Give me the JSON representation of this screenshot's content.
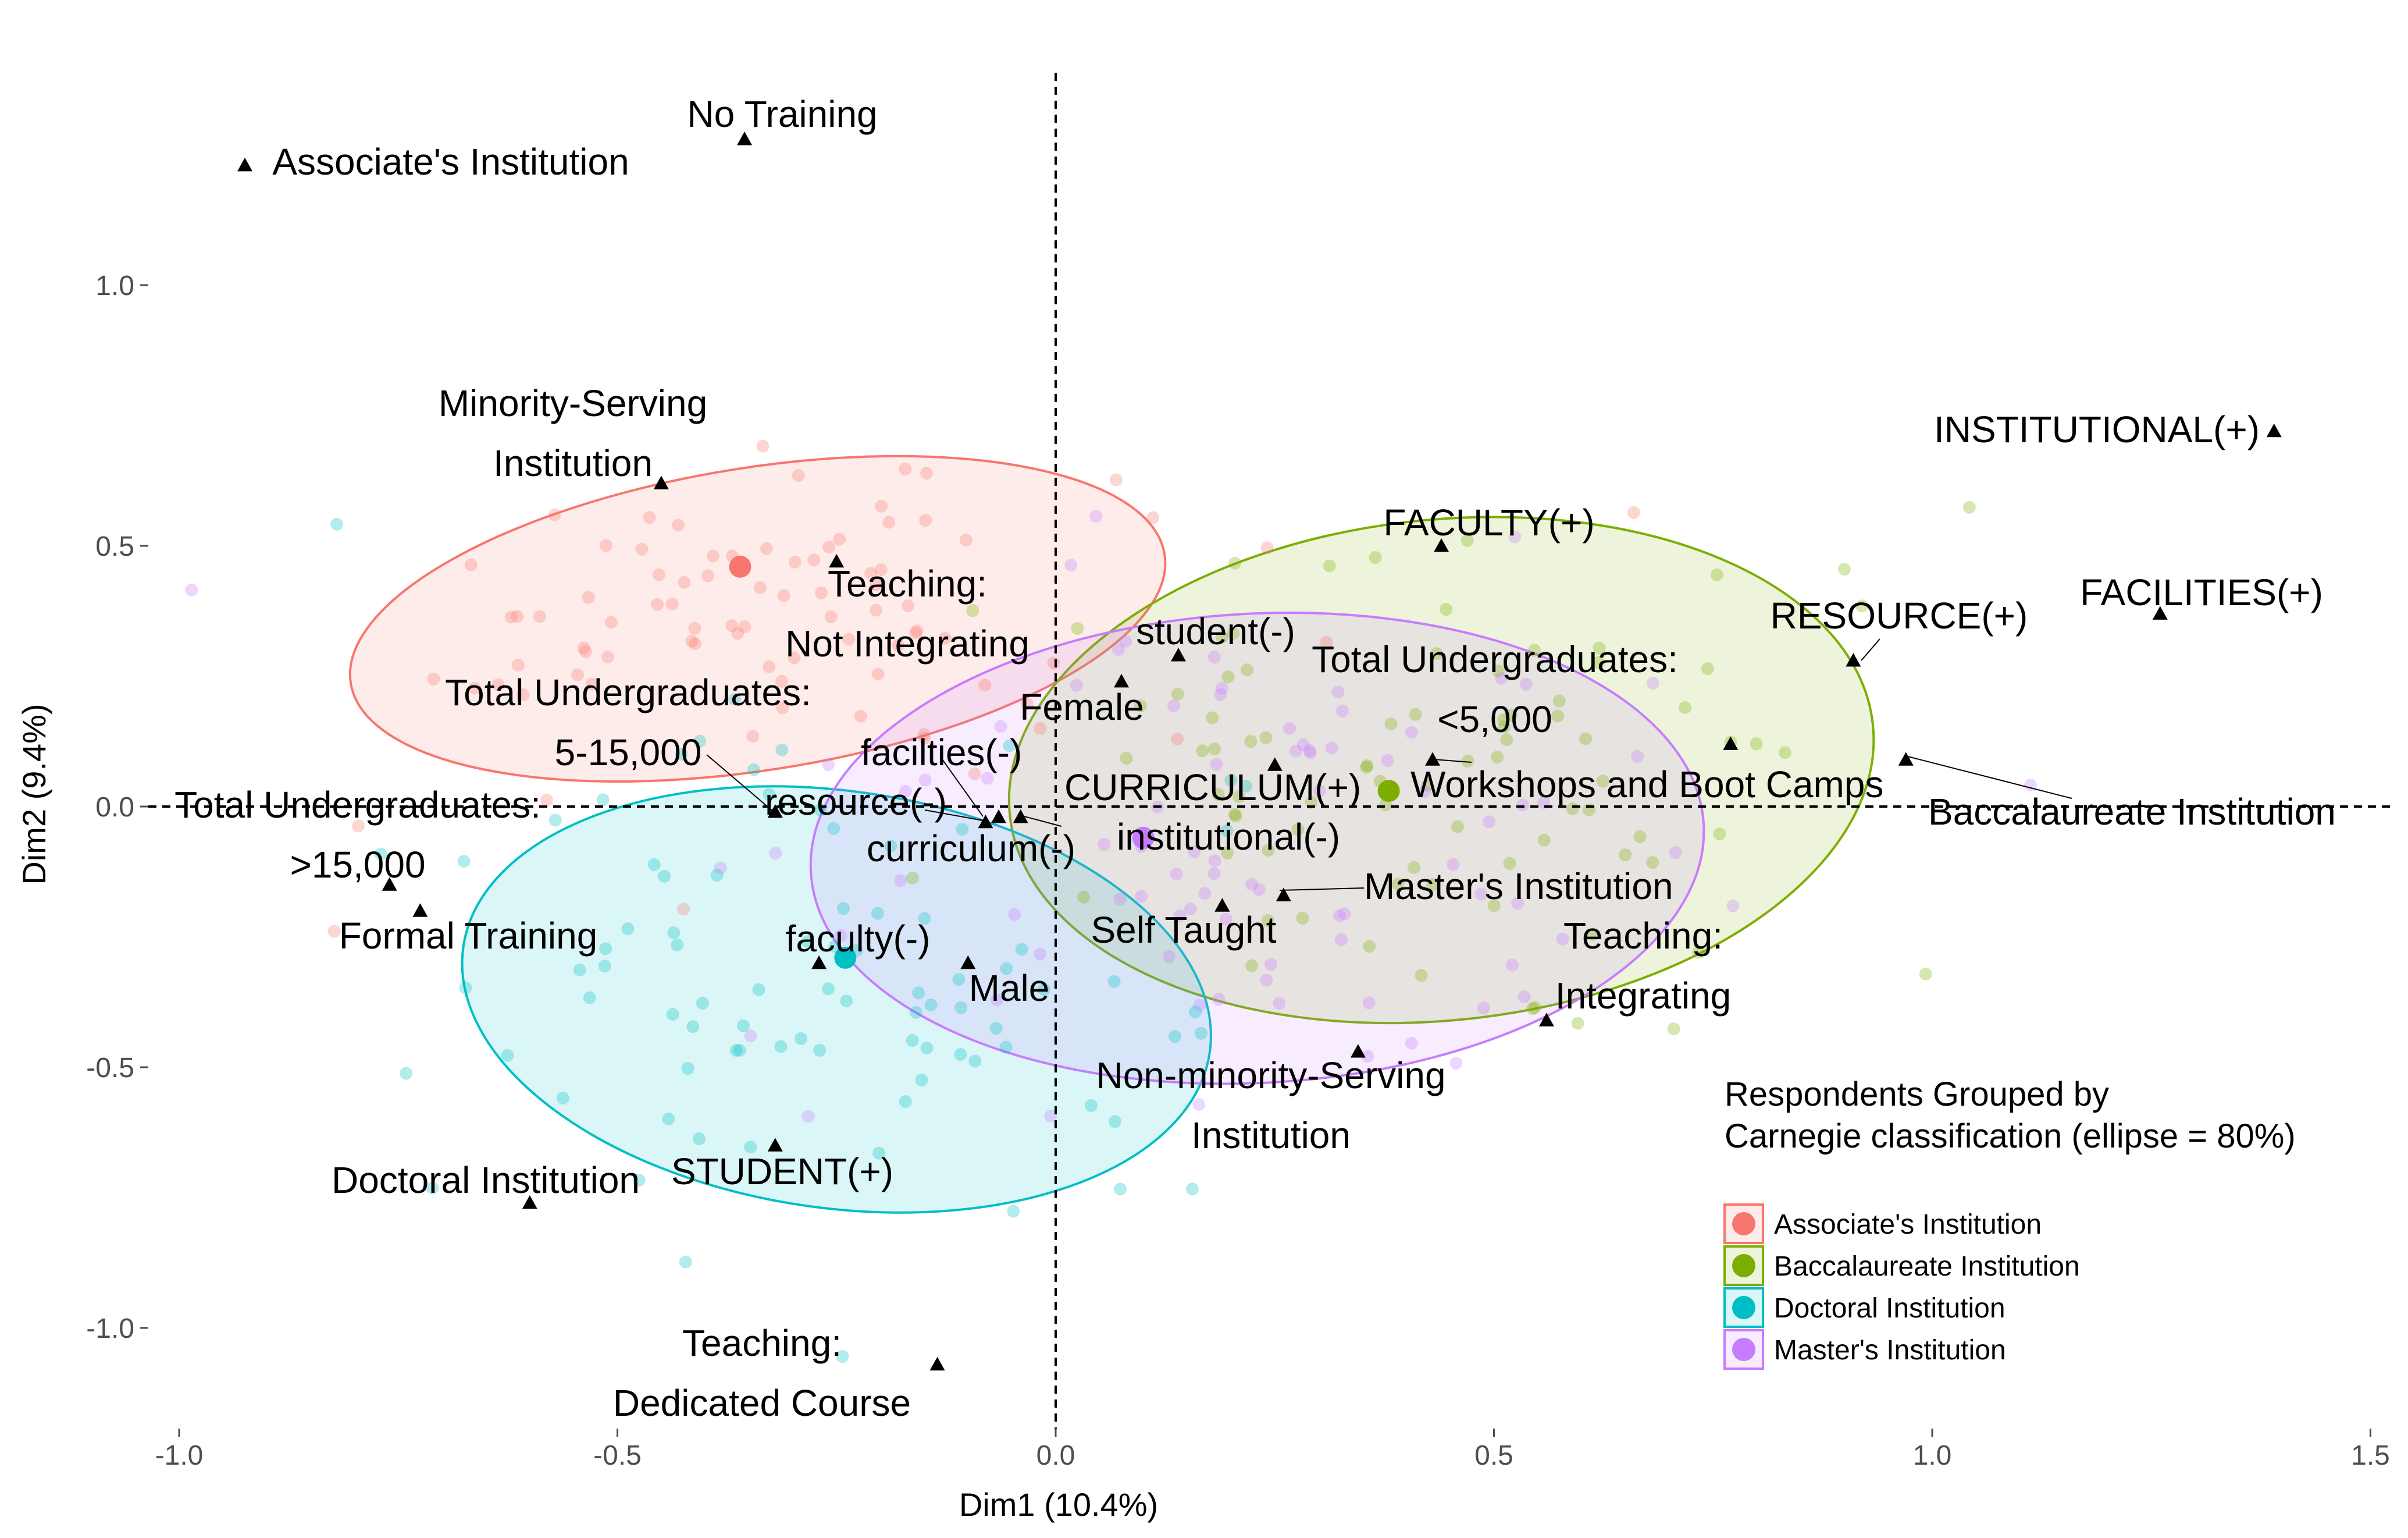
{
  "chart_data": {
    "type": "scatter",
    "title": "",
    "xlabel": "Dim1 (10.4%)",
    "ylabel": "Dim2 (9.4%)",
    "xlim": [
      -1.0,
      1.5
    ],
    "ylim": [
      -1.0,
      1.0
    ],
    "x_ticks": [
      "-1.0",
      "-0.5",
      "0.0",
      "0.5",
      "1.0",
      "1.5"
    ],
    "y_ticks": [
      "1.0",
      "0.5",
      "0.0",
      "-0.5",
      "-1.0"
    ],
    "grid": false,
    "reference_lines": {
      "x": 0,
      "y": 0
    },
    "legend": {
      "title_lines": [
        "Respondents Grouped by",
        "Carnegie classification (ellipse = 80%)"
      ],
      "position": "bottom-right"
    },
    "groups": [
      {
        "name": "Associate's Institution",
        "color": "#F8766D",
        "centroid": [
          -0.36,
          0.46
        ],
        "ellipse": {
          "cx": -0.34,
          "cy": 0.36,
          "rx": 0.47,
          "ry": 0.29,
          "angle": -9
        }
      },
      {
        "name": "Baccalaureate Institution",
        "color": "#7CAE00",
        "centroid": [
          0.38,
          0.03
        ],
        "ellipse": {
          "cx": 0.44,
          "cy": 0.07,
          "rx": 0.495,
          "ry": 0.48,
          "angle": -6
        }
      },
      {
        "name": "Doctoral Institution",
        "color": "#00BFC4",
        "centroid": [
          -0.24,
          -0.29
        ],
        "ellipse": {
          "cx": -0.25,
          "cy": -0.37,
          "rx": 0.43,
          "ry": 0.4,
          "angle": 8
        }
      },
      {
        "name": "Master's Institution",
        "color": "#C77CFF",
        "centroid": [
          0.1,
          -0.06
        ],
        "ellipse": {
          "cx": 0.23,
          "cy": -0.08,
          "rx": 0.51,
          "ry": 0.45,
          "angle": -3
        }
      }
    ],
    "variable_points": [
      {
        "label": "No Training",
        "x": -0.355,
        "y": 1.28
      },
      {
        "label": "Associate's Institution",
        "x": -0.925,
        "y": 1.23
      },
      {
        "label": "Minority-Serving\nInstitution",
        "x": -0.45,
        "y": 0.62
      },
      {
        "label": "Teaching:\nNot Integrating",
        "x": -0.25,
        "y": 0.47
      },
      {
        "label": "Total Undergraduates:\n5-15,000",
        "x": -0.32,
        "y": -0.01
      },
      {
        "label": "Total Undergraduates:\n>15,000",
        "x": -0.76,
        "y": -0.15
      },
      {
        "label": "Formal Training",
        "x": -0.725,
        "y": -0.2
      },
      {
        "label": "facilties(-)",
        "x": -0.065,
        "y": -0.02
      },
      {
        "label": "resource(-)",
        "x": -0.08,
        "y": -0.03
      },
      {
        "label": "curriculum(-)",
        "x": -0.04,
        "y": -0.02
      },
      {
        "label": "faculty(-)",
        "x": -0.27,
        "y": -0.3
      },
      {
        "label": "Male",
        "x": -0.1,
        "y": -0.3
      },
      {
        "label": "Female",
        "x": 0.075,
        "y": 0.24
      },
      {
        "label": "student(-)",
        "x": 0.14,
        "y": 0.29
      },
      {
        "label": "CURRICULUM(+)",
        "x": 0.25,
        "y": 0.08
      },
      {
        "label": "institutional(-)",
        "x": 0.19,
        "y": -0.19
      },
      {
        "label": "Self Taught",
        "x": 0.19,
        "y": -0.19
      },
      {
        "label": "Master's Institution",
        "x": 0.26,
        "y": -0.17
      },
      {
        "label": "FACULTY(+)",
        "x": 0.44,
        "y": 0.5
      },
      {
        "label": "Total Undergraduates:\n<5,000",
        "x": 0.43,
        "y": 0.09
      },
      {
        "label": "Workshops and Boot Camps",
        "x": 0.77,
        "y": 0.12
      },
      {
        "label": "RESOURCE(+)",
        "x": 0.91,
        "y": 0.28
      },
      {
        "label": "FACILITIES(+)",
        "x": 1.26,
        "y": 0.37
      },
      {
        "label": "INSTITUTIONAL(+)",
        "x": 1.39,
        "y": 0.72
      },
      {
        "label": "Baccalaureate Institution",
        "x": 0.97,
        "y": 0.09
      },
      {
        "label": "Teaching:\nIntegrating",
        "x": 0.56,
        "y": -0.41
      },
      {
        "label": "Non-minority-Serving\nInstitution",
        "x": 0.345,
        "y": -0.47
      },
      {
        "label": "STUDENT(+)",
        "x": -0.32,
        "y": -0.65
      },
      {
        "label": "Doctoral Institution",
        "x": -0.6,
        "y": -0.76
      },
      {
        "label": "Teaching:\nDedicated Course",
        "x": -0.135,
        "y": -1.07
      }
    ]
  }
}
